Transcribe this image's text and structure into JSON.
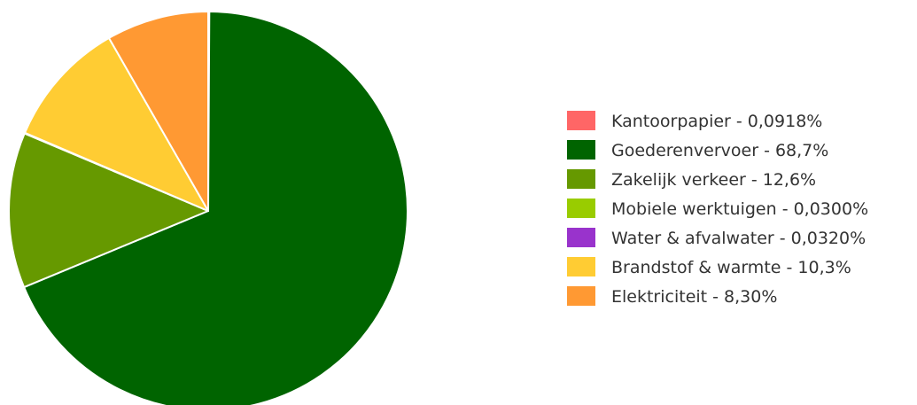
{
  "chart_data": {
    "type": "pie",
    "title": "",
    "legend_position": "right",
    "slices": [
      {
        "label": "Kantoorpapier",
        "value_label": "0,0918%",
        "value": 0.0918,
        "color": "#ff6666"
      },
      {
        "label": "Goederenvervoer",
        "value_label": "68,7%",
        "value": 68.7,
        "color": "#006400"
      },
      {
        "label": "Zakelijk verkeer",
        "value_label": "12,6%",
        "value": 12.6,
        "color": "#669900"
      },
      {
        "label": "Mobiele werktuigen",
        "value_label": "0,0300%",
        "value": 0.03,
        "color": "#99cc00"
      },
      {
        "label": "Water & afvalwater",
        "value_label": "0,0320%",
        "value": 0.032,
        "color": "#9933cc"
      },
      {
        "label": "Brandstof & warmte",
        "value_label": "10,3%",
        "value": 10.3,
        "color": "#ffcc33"
      },
      {
        "label": "Elektriciteit",
        "value_label": "8,30%",
        "value": 8.3,
        "color": "#ff9933"
      }
    ]
  }
}
